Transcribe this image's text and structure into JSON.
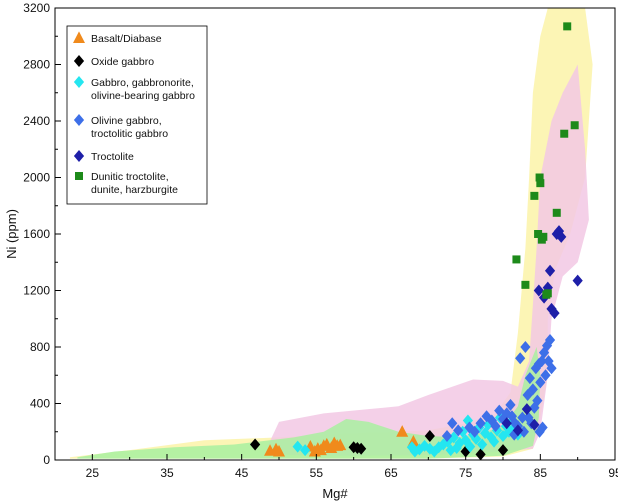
{
  "chart_data": {
    "type": "scatter",
    "xlabel": "Mg#",
    "ylabel": "Ni (ppm)",
    "xlim": [
      20,
      95
    ],
    "ylim": [
      0,
      3200
    ],
    "xticks": [
      25,
      35,
      45,
      55,
      65,
      75,
      85,
      95
    ],
    "yticks": [
      0,
      400,
      800,
      1200,
      1600,
      2000,
      2400,
      2800,
      3200
    ],
    "grid": false,
    "legend_position": "top-left",
    "legend": [
      {
        "key": "basalt",
        "lines": [
          "Basalt/Diabase"
        ]
      },
      {
        "key": "oxide",
        "lines": [
          "Oxide gabbro"
        ]
      },
      {
        "key": "gabbro",
        "lines": [
          "Gabbro, gabbronorite,",
          "olivine-bearing gabbro"
        ]
      },
      {
        "key": "olivine",
        "lines": [
          "Olivine gabbro,",
          "troctolitic gabbro"
        ]
      },
      {
        "key": "troctolite",
        "lines": [
          "Troctolite"
        ]
      },
      {
        "key": "dunitic",
        "lines": [
          "Dunitic troctolite,",
          "dunite, harzburgite"
        ]
      }
    ],
    "regions": [
      {
        "color": "#fbf3a8",
        "points": [
          [
            22,
            20
          ],
          [
            30,
            70
          ],
          [
            40,
            140
          ],
          [
            50,
            160
          ],
          [
            60,
            190
          ],
          [
            66,
            200
          ],
          [
            70,
            210
          ],
          [
            75,
            260
          ],
          [
            79,
            330
          ],
          [
            81,
            480
          ],
          [
            82,
            900
          ],
          [
            83,
            1500
          ],
          [
            83.5,
            2000
          ],
          [
            84,
            2600
          ],
          [
            85,
            3000
          ],
          [
            86,
            3200
          ],
          [
            91,
            3200
          ],
          [
            92,
            2800
          ],
          [
            91,
            2000
          ],
          [
            89,
            1600
          ],
          [
            87,
            1350
          ],
          [
            86,
            1000
          ],
          [
            86,
            600
          ],
          [
            85,
            300
          ],
          [
            84,
            80
          ],
          [
            80,
            25
          ],
          [
            70,
            10
          ],
          [
            50,
            10
          ],
          [
            30,
            10
          ],
          [
            22,
            10
          ]
        ]
      },
      {
        "color": "#f2c8e4",
        "points": [
          [
            48.5,
            100
          ],
          [
            50,
            270
          ],
          [
            56,
            330
          ],
          [
            62,
            360
          ],
          [
            66,
            380
          ],
          [
            70,
            460
          ],
          [
            76,
            570
          ],
          [
            80,
            560
          ],
          [
            82,
            520
          ],
          [
            83.5,
            700
          ],
          [
            84,
            1100
          ],
          [
            84.5,
            1500
          ],
          [
            85,
            2000
          ],
          [
            86.5,
            2400
          ],
          [
            88,
            2600
          ],
          [
            90,
            2800
          ],
          [
            91,
            2200
          ],
          [
            91.5,
            1700
          ],
          [
            90,
            1400
          ],
          [
            88,
            1300
          ],
          [
            86.5,
            1000
          ],
          [
            86,
            600
          ],
          [
            85,
            200
          ],
          [
            84,
            80
          ],
          [
            78,
            55
          ],
          [
            70,
            35
          ],
          [
            60,
            30
          ],
          [
            52,
            35
          ],
          [
            49,
            45
          ]
        ]
      },
      {
        "color": "#a8f0a0",
        "points": [
          [
            23,
            20
          ],
          [
            28,
            60
          ],
          [
            36,
            90
          ],
          [
            44,
            110
          ],
          [
            52,
            160
          ],
          [
            56,
            200
          ],
          [
            59,
            290
          ],
          [
            62,
            270
          ],
          [
            66,
            200
          ],
          [
            70,
            170
          ],
          [
            74,
            160
          ],
          [
            77,
            190
          ],
          [
            80,
            240
          ],
          [
            82,
            380
          ],
          [
            83,
            600
          ],
          [
            84.5,
            800
          ],
          [
            85,
            600
          ],
          [
            84.8,
            300
          ],
          [
            84,
            100
          ],
          [
            80,
            30
          ],
          [
            70,
            10
          ],
          [
            50,
            10
          ],
          [
            30,
            10
          ],
          [
            23,
            10
          ]
        ]
      }
    ],
    "series": [
      {
        "name": "Basalt/Diabase",
        "key": "basalt",
        "marker": "triangle",
        "color": "#f08a1c",
        "points": [
          [
            48.8,
            65
          ],
          [
            49.6,
            75
          ],
          [
            50.0,
            60
          ],
          [
            54.2,
            95
          ],
          [
            54.8,
            60
          ],
          [
            55.2,
            80
          ],
          [
            55.6,
            70
          ],
          [
            56.0,
            100
          ],
          [
            56.4,
            110
          ],
          [
            57.0,
            85
          ],
          [
            57.4,
            120
          ],
          [
            57.8,
            100
          ],
          [
            58.2,
            105
          ],
          [
            66.5,
            200
          ],
          [
            68.0,
            130
          ]
        ]
      },
      {
        "name": "Oxide gabbro",
        "key": "oxide",
        "marker": "diamond",
        "color": "#000000",
        "points": [
          [
            46.8,
            110
          ],
          [
            60.0,
            90
          ],
          [
            60.5,
            85
          ],
          [
            61.0,
            80
          ],
          [
            70.2,
            170
          ],
          [
            75.0,
            60
          ],
          [
            77.0,
            40
          ],
          [
            80.0,
            70
          ]
        ]
      },
      {
        "name": "Gabbro, gabbronorite, olivine-bearing gabbro",
        "key": "gabbro",
        "marker": "diamond",
        "color": "#24e6f0",
        "points": [
          [
            52.5,
            95
          ],
          [
            53.5,
            70
          ],
          [
            67.8,
            90
          ],
          [
            68.2,
            60
          ],
          [
            68.8,
            75
          ],
          [
            69.5,
            100
          ],
          [
            70.2,
            80
          ],
          [
            70.8,
            60
          ],
          [
            71.4,
            90
          ],
          [
            72.0,
            110
          ],
          [
            72.6,
            130
          ],
          [
            73.0,
            70
          ],
          [
            73.4,
            160
          ],
          [
            73.8,
            85
          ],
          [
            74.2,
            120
          ],
          [
            74.6,
            200
          ],
          [
            75.0,
            140
          ],
          [
            75.3,
            280
          ],
          [
            75.6,
            95
          ],
          [
            76.0,
            180
          ],
          [
            76.4,
            150
          ],
          [
            76.8,
            230
          ],
          [
            77.2,
            110
          ],
          [
            77.6,
            190
          ],
          [
            78.0,
            250
          ],
          [
            78.4,
            160
          ],
          [
            78.8,
            130
          ],
          [
            79.2,
            210
          ],
          [
            79.6,
            300
          ],
          [
            80.0,
            170
          ],
          [
            80.4,
            240
          ],
          [
            80.8,
            200
          ],
          [
            81.2,
            280
          ],
          [
            81.6,
            230
          ],
          [
            82.0,
            180
          ]
        ]
      },
      {
        "name": "Olivine gabbro, troctolitic gabbro",
        "key": "olivine",
        "marker": "diamond",
        "color": "#3d6fe8",
        "points": [
          [
            72.5,
            170
          ],
          [
            73.2,
            260
          ],
          [
            74.0,
            210
          ],
          [
            75.5,
            230
          ],
          [
            76.2,
            200
          ],
          [
            77.0,
            260
          ],
          [
            77.8,
            310
          ],
          [
            78.5,
            280
          ],
          [
            79.0,
            240
          ],
          [
            79.5,
            350
          ],
          [
            80.0,
            290
          ],
          [
            80.5,
            330
          ],
          [
            81.0,
            390
          ],
          [
            81.2,
            310
          ],
          [
            81.6,
            260
          ],
          [
            82.0,
            240
          ],
          [
            82.3,
            720
          ],
          [
            82.6,
            300
          ],
          [
            83.0,
            800
          ],
          [
            83.3,
            460
          ],
          [
            83.6,
            580
          ],
          [
            84.0,
            500
          ],
          [
            84.2,
            370
          ],
          [
            84.4,
            650
          ],
          [
            84.6,
            420
          ],
          [
            84.8,
            680
          ],
          [
            85.0,
            550
          ],
          [
            85.2,
            700
          ],
          [
            85.5,
            760
          ],
          [
            85.7,
            600
          ],
          [
            85.9,
            810
          ],
          [
            86.1,
            700
          ],
          [
            86.3,
            850
          ],
          [
            86.5,
            650
          ],
          [
            85.3,
            230
          ],
          [
            84.9,
            200
          ],
          [
            83.8,
            260
          ],
          [
            83.4,
            300
          ],
          [
            82.8,
            200
          ],
          [
            81.5,
            180
          ]
        ]
      },
      {
        "name": "Troctolite",
        "key": "troctolite",
        "marker": "diamond",
        "color": "#1e1fa8",
        "points": [
          [
            80.5,
            260
          ],
          [
            84.2,
            250
          ],
          [
            84.8,
            1200
          ],
          [
            85.5,
            1150
          ],
          [
            86.0,
            1220
          ],
          [
            86.3,
            1340
          ],
          [
            86.5,
            1070
          ],
          [
            86.9,
            1040
          ],
          [
            87.2,
            1600
          ],
          [
            87.5,
            1620
          ],
          [
            87.8,
            1580
          ],
          [
            90.0,
            1270
          ],
          [
            82.0,
            210
          ],
          [
            83.2,
            360
          ]
        ]
      },
      {
        "name": "Dunitic troctolite, dunite, harzburgite",
        "key": "dunitic",
        "marker": "square",
        "color": "#1d8a1a",
        "points": [
          [
            81.8,
            1420
          ],
          [
            83.0,
            1240
          ],
          [
            84.2,
            1870
          ],
          [
            84.7,
            1600
          ],
          [
            84.9,
            2000
          ],
          [
            85.0,
            1960
          ],
          [
            85.2,
            1560
          ],
          [
            85.4,
            1580
          ],
          [
            85.8,
            1170
          ],
          [
            86.0,
            1180
          ],
          [
            87.2,
            1750
          ],
          [
            88.2,
            2310
          ],
          [
            88.6,
            3070
          ],
          [
            89.6,
            2370
          ]
        ]
      }
    ]
  }
}
